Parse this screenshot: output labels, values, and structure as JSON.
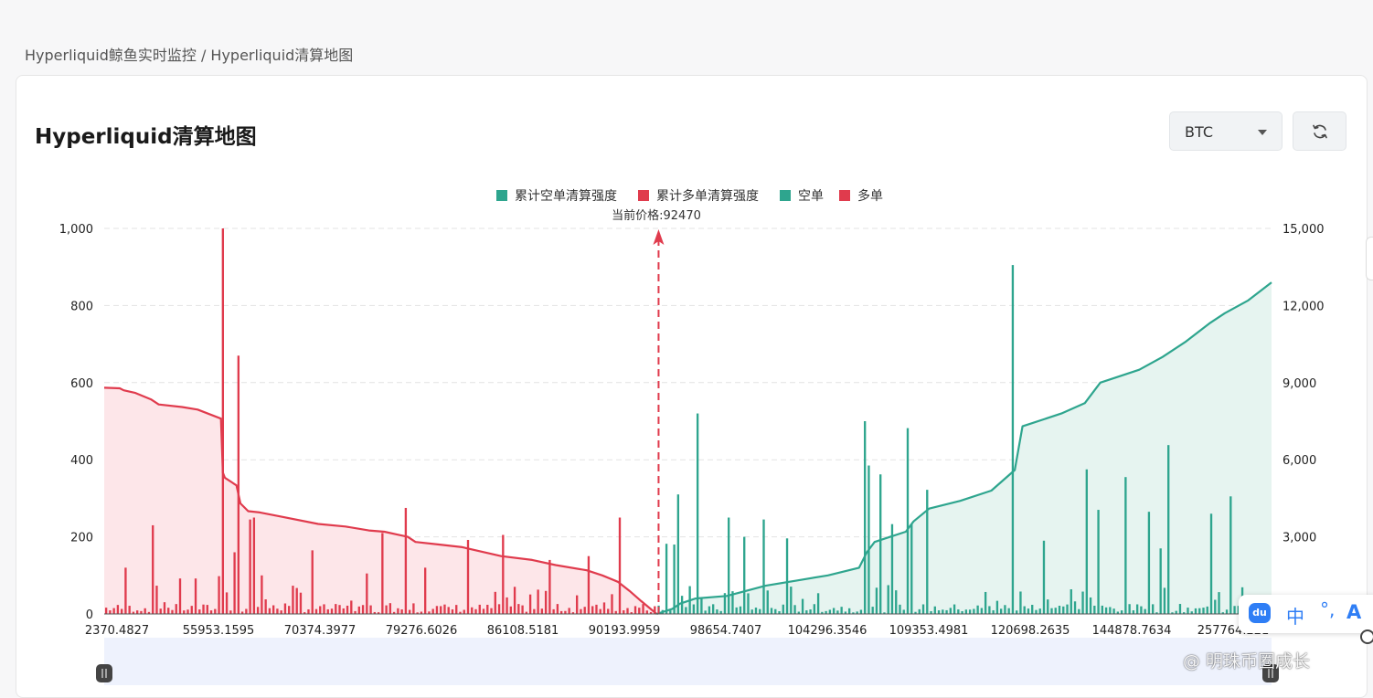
{
  "breadcrumb": "Hyperliquid鲸鱼实时监控 / Hyperliquid清算地图",
  "page_title": "Hyperliquid清算地图",
  "coin_select": {
    "value": "BTC"
  },
  "ime": {
    "logo": "du",
    "mode": "中",
    "punct": "°,",
    "font": "A"
  },
  "watermark": "@ 明珠币圈成长",
  "colors": {
    "short": "#2ea58e",
    "long": "#e03b4d",
    "short_fill": "#e6f4f0",
    "long_fill": "#fde6e9",
    "zoom_slider": "#eef2fd"
  },
  "chart_data": {
    "type": "bar",
    "legend": [
      "累计空单清算强度",
      "累计多单清算强度",
      "空单",
      "多单"
    ],
    "legend_position": "top-center",
    "current_price_label": "当前价格:92470",
    "current_price": 92470,
    "y_left": {
      "ticks": [
        0,
        200,
        400,
        600,
        800,
        1000
      ],
      "tick_labels": [
        "0",
        "200",
        "400",
        "600",
        "800",
        "1,000"
      ],
      "range": [
        0,
        1000
      ]
    },
    "y_right": {
      "ticks": [
        0,
        3000,
        6000,
        9000,
        12000,
        15000
      ],
      "tick_labels": [
        "",
        "3,000",
        "6,000",
        "9,000",
        "12,000",
        "15,000"
      ],
      "range": [
        0,
        15000
      ]
    },
    "x_tick_labels": [
      "2370.4827",
      "55953.1595",
      "70374.3977",
      "79276.6026",
      "86108.5181",
      "90193.9959",
      "98654.7407",
      "104296.3546",
      "109353.4981",
      "120698.2635",
      "144878.7634",
      "257764.221"
    ],
    "price_bins": 300,
    "current_price_bin_index": 142,
    "long_bars_notable": [
      {
        "bin": 30,
        "value": 1000
      },
      {
        "bin": 34,
        "value": 670
      },
      {
        "bin": 38,
        "value": 250
      },
      {
        "bin": 37,
        "value": 245
      },
      {
        "bin": 33,
        "value": 160
      },
      {
        "bin": 29,
        "value": 98
      },
      {
        "bin": 12,
        "value": 230
      },
      {
        "bin": 77,
        "value": 275
      },
      {
        "bin": 71,
        "value": 210
      },
      {
        "bin": 53,
        "value": 165
      },
      {
        "bin": 93,
        "value": 192
      },
      {
        "bin": 102,
        "value": 205
      },
      {
        "bin": 114,
        "value": 140
      },
      {
        "bin": 124,
        "value": 150
      },
      {
        "bin": 132,
        "value": 250
      },
      {
        "bin": 5,
        "value": 120
      },
      {
        "bin": 19,
        "value": 92
      },
      {
        "bin": 23,
        "value": 92
      },
      {
        "bin": 82,
        "value": 120
      },
      {
        "bin": 67,
        "value": 105
      },
      {
        "bin": 40,
        "value": 100
      }
    ],
    "short_bars_notable": [
      {
        "bin": 233,
        "value": 905
      },
      {
        "bin": 152,
        "value": 520
      },
      {
        "bin": 195,
        "value": 500
      },
      {
        "bin": 196,
        "value": 385
      },
      {
        "bin": 206,
        "value": 482
      },
      {
        "bin": 273,
        "value": 438
      },
      {
        "bin": 199,
        "value": 362
      },
      {
        "bin": 289,
        "value": 305
      },
      {
        "bin": 262,
        "value": 355
      },
      {
        "bin": 147,
        "value": 310
      },
      {
        "bin": 252,
        "value": 375
      },
      {
        "bin": 284,
        "value": 260
      },
      {
        "bin": 169,
        "value": 245
      },
      {
        "bin": 211,
        "value": 322
      },
      {
        "bin": 207,
        "value": 233
      },
      {
        "bin": 202,
        "value": 233
      },
      {
        "bin": 268,
        "value": 265
      },
      {
        "bin": 255,
        "value": 270
      },
      {
        "bin": 160,
        "value": 250
      },
      {
        "bin": 175,
        "value": 196
      },
      {
        "bin": 164,
        "value": 200
      },
      {
        "bin": 241,
        "value": 190
      },
      {
        "bin": 144,
        "value": 182
      },
      {
        "bin": 146,
        "value": 180
      },
      {
        "bin": 271,
        "value": 170
      },
      {
        "bin": 300,
        "value": 130
      }
    ],
    "cumulative_long": [
      [
        0,
        8800
      ],
      [
        4,
        8780
      ],
      [
        5,
        8700
      ],
      [
        8,
        8600
      ],
      [
        12,
        8350
      ],
      [
        14,
        8150
      ],
      [
        20,
        8050
      ],
      [
        24,
        7950
      ],
      [
        30,
        7600
      ],
      [
        30.5,
        5500
      ],
      [
        31,
        5300
      ],
      [
        33,
        5100
      ],
      [
        34,
        5000
      ],
      [
        35,
        4300
      ],
      [
        37,
        4000
      ],
      [
        40,
        3950
      ],
      [
        45,
        3800
      ],
      [
        55,
        3500
      ],
      [
        62,
        3400
      ],
      [
        68,
        3250
      ],
      [
        72,
        3200
      ],
      [
        75,
        3100
      ],
      [
        78,
        3000
      ],
      [
        80,
        2800
      ],
      [
        86,
        2700
      ],
      [
        92,
        2600
      ],
      [
        102,
        2250
      ],
      [
        110,
        2100
      ],
      [
        116,
        1900
      ],
      [
        124,
        1700
      ],
      [
        128,
        1500
      ],
      [
        132,
        1250
      ],
      [
        135,
        900
      ],
      [
        138,
        500
      ],
      [
        142,
        0
      ]
    ],
    "cumulative_short": [
      [
        142,
        0
      ],
      [
        146,
        200
      ],
      [
        148,
        400
      ],
      [
        152,
        600
      ],
      [
        160,
        700
      ],
      [
        165,
        900
      ],
      [
        170,
        1100
      ],
      [
        178,
        1300
      ],
      [
        186,
        1500
      ],
      [
        194,
        1800
      ],
      [
        196,
        2400
      ],
      [
        198,
        2800
      ],
      [
        202,
        3000
      ],
      [
        206,
        3200
      ],
      [
        208,
        3600
      ],
      [
        212,
        4100
      ],
      [
        220,
        4400
      ],
      [
        228,
        4800
      ],
      [
        234,
        5600
      ],
      [
        236,
        7300
      ],
      [
        238,
        7400
      ],
      [
        246,
        7800
      ],
      [
        252,
        8200
      ],
      [
        256,
        9000
      ],
      [
        260,
        9200
      ],
      [
        266,
        9500
      ],
      [
        272,
        10000
      ],
      [
        278,
        10600
      ],
      [
        284,
        11300
      ],
      [
        288,
        11700
      ],
      [
        294,
        12200
      ],
      [
        300,
        12900
      ]
    ]
  }
}
